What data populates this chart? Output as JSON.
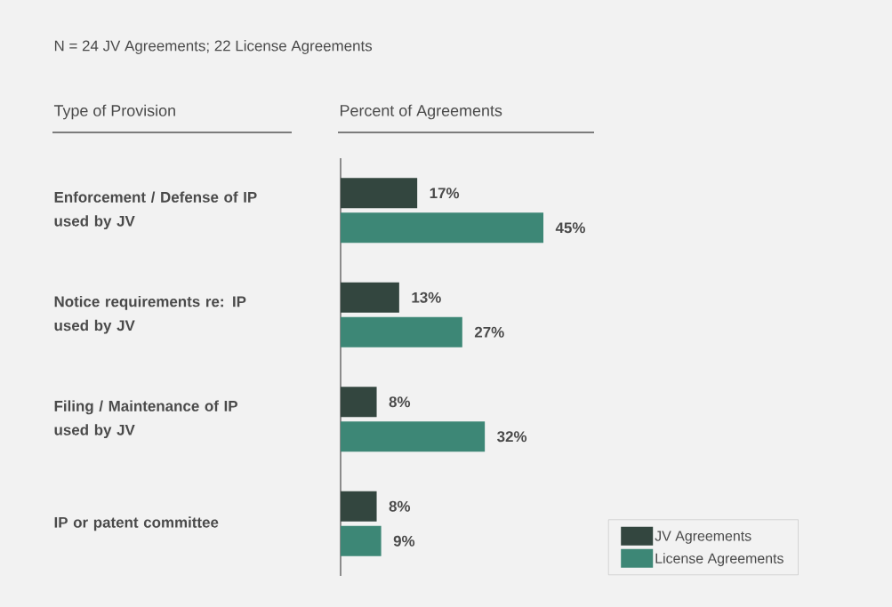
{
  "chart_data": {
    "type": "bar",
    "orientation": "horizontal",
    "title": "N = 24 JV Agreements; 22 License Agreements",
    "annotations": [
      "Type of Provision",
      "Percent of Agreements"
    ],
    "categories": [
      "Enforcement / Defense of IP used by JV",
      "Notice requirements re: IP used by JV",
      "Filing / Maintenance of IP used by JV",
      "IP or patent committee"
    ],
    "series": [
      {
        "name": "JV Agreements",
        "color": "#33463f",
        "values": [
          17,
          13,
          8,
          8
        ],
        "value_labels": [
          "17%",
          "13%",
          "8%",
          "8%"
        ]
      },
      {
        "name": "License Agreements",
        "color": "#3d8776",
        "values": [
          45,
          27,
          32,
          9
        ],
        "value_labels": [
          "45%",
          "27%",
          "32%",
          "9%"
        ]
      }
    ],
    "legend": "bottom right"
  }
}
